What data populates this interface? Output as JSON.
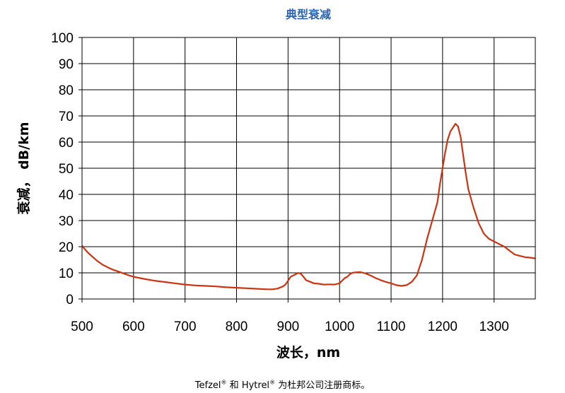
{
  "chart_data": {
    "type": "line",
    "title": "典型衰减",
    "xlabel": "波长，nm",
    "ylabel": "衰减， dB/km",
    "xlim": [
      500,
      1380
    ],
    "ylim": [
      0,
      100
    ],
    "x_ticks": [
      500,
      600,
      700,
      800,
      900,
      1000,
      1100,
      1200,
      1300
    ],
    "y_ticks": [
      0,
      10,
      20,
      30,
      40,
      50,
      60,
      70,
      80,
      90,
      100
    ],
    "grid": true,
    "line_color": "#cc3311",
    "series": [
      {
        "values": [
          [
            500,
            20.3
          ],
          [
            510,
            18.0
          ],
          [
            520,
            16.2
          ],
          [
            530,
            14.5
          ],
          [
            540,
            13.1
          ],
          [
            550,
            12.1
          ],
          [
            560,
            11.2
          ],
          [
            570,
            10.5
          ],
          [
            580,
            9.8
          ],
          [
            590,
            9.1
          ],
          [
            600,
            8.5
          ],
          [
            620,
            7.7
          ],
          [
            640,
            7.0
          ],
          [
            660,
            6.5
          ],
          [
            680,
            6.0
          ],
          [
            700,
            5.5
          ],
          [
            720,
            5.2
          ],
          [
            740,
            5.0
          ],
          [
            760,
            4.8
          ],
          [
            780,
            4.5
          ],
          [
            800,
            4.3
          ],
          [
            820,
            4.1
          ],
          [
            840,
            3.9
          ],
          [
            860,
            3.7
          ],
          [
            870,
            3.7
          ],
          [
            880,
            4.0
          ],
          [
            890,
            4.8
          ],
          [
            895,
            5.5
          ],
          [
            900,
            7.0
          ],
          [
            905,
            8.5
          ],
          [
            910,
            9.0
          ],
          [
            915,
            9.5
          ],
          [
            920,
            10.0
          ],
          [
            925,
            9.6
          ],
          [
            930,
            8.5
          ],
          [
            935,
            7.2
          ],
          [
            940,
            6.8
          ],
          [
            950,
            6.0
          ],
          [
            960,
            5.8
          ],
          [
            970,
            5.5
          ],
          [
            980,
            5.6
          ],
          [
            990,
            5.5
          ],
          [
            1000,
            6.0
          ],
          [
            1005,
            7.0
          ],
          [
            1010,
            8.0
          ],
          [
            1015,
            8.5
          ],
          [
            1020,
            9.5
          ],
          [
            1025,
            10.0
          ],
          [
            1030,
            10.2
          ],
          [
            1040,
            10.3
          ],
          [
            1050,
            9.8
          ],
          [
            1060,
            9.0
          ],
          [
            1070,
            8.0
          ],
          [
            1080,
            7.2
          ],
          [
            1090,
            6.5
          ],
          [
            1100,
            6.0
          ],
          [
            1110,
            5.3
          ],
          [
            1120,
            5.0
          ],
          [
            1130,
            5.3
          ],
          [
            1140,
            6.5
          ],
          [
            1150,
            9.0
          ],
          [
            1160,
            15.0
          ],
          [
            1170,
            23.0
          ],
          [
            1180,
            30.0
          ],
          [
            1190,
            37.0
          ],
          [
            1195,
            44.0
          ],
          [
            1200,
            50.0
          ],
          [
            1205,
            56.0
          ],
          [
            1210,
            61.0
          ],
          [
            1215,
            64.0
          ],
          [
            1220,
            65.5
          ],
          [
            1225,
            67.0
          ],
          [
            1230,
            66.0
          ],
          [
            1235,
            62.0
          ],
          [
            1240,
            55.0
          ],
          [
            1245,
            48.0
          ],
          [
            1250,
            42.0
          ],
          [
            1260,
            35.0
          ],
          [
            1270,
            29.0
          ],
          [
            1280,
            25.0
          ],
          [
            1290,
            23.0
          ],
          [
            1300,
            22.0
          ],
          [
            1310,
            21.0
          ],
          [
            1320,
            20.0
          ],
          [
            1330,
            18.5
          ],
          [
            1340,
            17.0
          ],
          [
            1350,
            16.5
          ],
          [
            1360,
            16.0
          ],
          [
            1370,
            15.8
          ],
          [
            1380,
            15.5
          ]
        ]
      }
    ]
  },
  "footnote": {
    "brand1": "Tefzel",
    "reg": "®",
    "and": " 和 ",
    "brand2": "Hytrel",
    "rest": " 为杜邦公司注册商标。"
  }
}
